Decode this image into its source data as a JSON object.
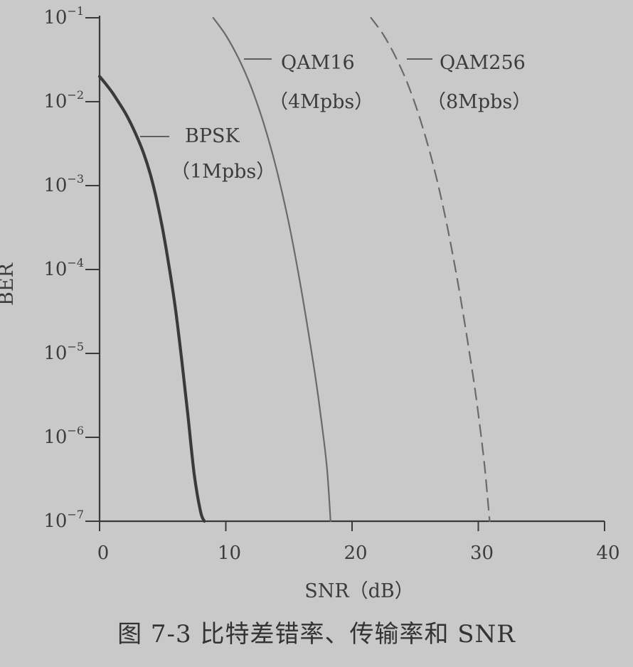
{
  "caption": "图 7-3   比特差错率、传输率和 SNR",
  "chart_data": {
    "type": "line",
    "xlabel": "SNR（dB）",
    "ylabel": "BER",
    "xlim": [
      0,
      40
    ],
    "ylim": [
      1e-07,
      0.1
    ],
    "y_scale": "log",
    "grid": false,
    "x_ticks": [
      0,
      10,
      20,
      30,
      40
    ],
    "y_ticks": [
      {
        "base": "10",
        "exp": "-1",
        "value": 0.1
      },
      {
        "base": "10",
        "exp": "-2",
        "value": 0.01
      },
      {
        "base": "10",
        "exp": "-3",
        "value": 0.001
      },
      {
        "base": "10",
        "exp": "-4",
        "value": 0.0001
      },
      {
        "base": "10",
        "exp": "-5",
        "value": 1e-05
      },
      {
        "base": "10",
        "exp": "-6",
        "value": 1e-06
      },
      {
        "base": "10",
        "exp": "-7",
        "value": 1e-07
      }
    ],
    "series": [
      {
        "name": "BPSK",
        "rate": "（1Mpbs）",
        "style": "solid",
        "color": "#3a3a3a",
        "x": [
          0,
          0.5,
          1,
          1.5,
          2,
          2.5,
          3,
          3.5,
          4,
          4.5,
          5,
          5.5,
          6,
          6.5,
          7,
          7.5,
          8,
          8.3
        ],
        "y": [
          0.02,
          0.0162,
          0.0129,
          0.0099,
          0.0075,
          0.0054,
          0.0037,
          0.0024,
          0.0014,
          0.0007,
          0.0003,
          0.00011,
          3.5e-05,
          8.5e-06,
          1.8e-06,
          3.6e-07,
          1.3e-07,
          1e-07
        ]
      },
      {
        "name": "QAM16",
        "rate": "（4Mpbs）",
        "style": "solid-thin",
        "color": "#6a6a6a",
        "x": [
          9,
          10,
          11,
          12,
          13,
          14,
          15,
          16,
          17,
          17.5,
          18,
          18.3
        ],
        "y": [
          0.1,
          0.062,
          0.033,
          0.015,
          0.0055,
          0.0016,
          0.00035,
          5.5e-05,
          6.5e-06,
          1.9e-06,
          4.5e-07,
          1e-07
        ]
      },
      {
        "name": "QAM256",
        "rate": "（8Mpbs）",
        "style": "dashed",
        "color": "#6a6a6a",
        "x": [
          21.5,
          22.5,
          23.5,
          24.5,
          25.5,
          26.5,
          27.5,
          28.5,
          29.5,
          30,
          30.5,
          30.9
        ],
        "y": [
          0.1,
          0.062,
          0.033,
          0.015,
          0.0055,
          0.0016,
          0.00035,
          5.5e-05,
          6.5e-06,
          1.9e-06,
          4.5e-07,
          1e-07
        ]
      }
    ]
  }
}
